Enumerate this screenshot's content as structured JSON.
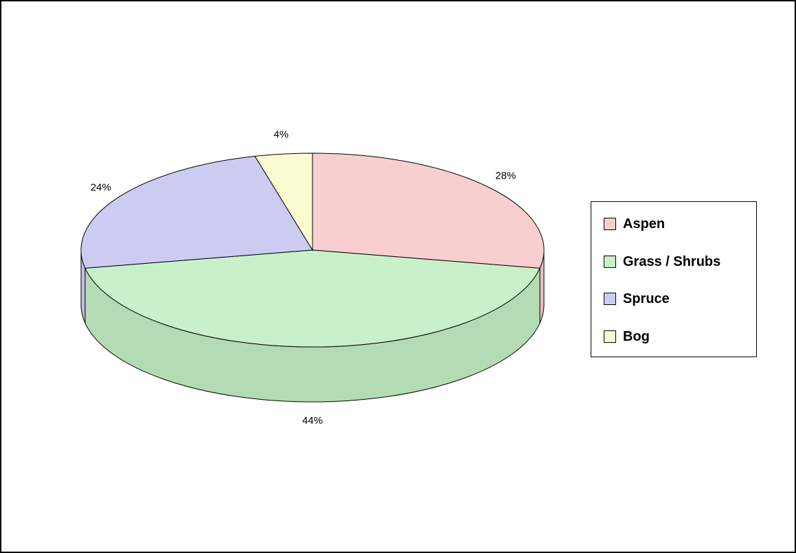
{
  "chart_data": {
    "type": "pie",
    "categories": [
      "Aspen",
      "Grass / Shrubs",
      "Spruce",
      "Bog"
    ],
    "values": [
      28,
      44,
      24,
      4
    ],
    "data_labels": [
      "28%",
      "44%",
      "24%",
      "4%"
    ],
    "colors": [
      "#f7cfd0",
      "#c9f1c9",
      "#ccccf3",
      "#fbfbd2"
    ],
    "side_colors": [
      "#e7bfc0",
      "#b4dcb4",
      "#bcbce3",
      "#ebebc2"
    ],
    "legend": {
      "placement": "right",
      "entries": [
        "Aspen",
        "Grass / Shrubs",
        "Spruce",
        "Bog"
      ]
    },
    "style": "3d"
  }
}
